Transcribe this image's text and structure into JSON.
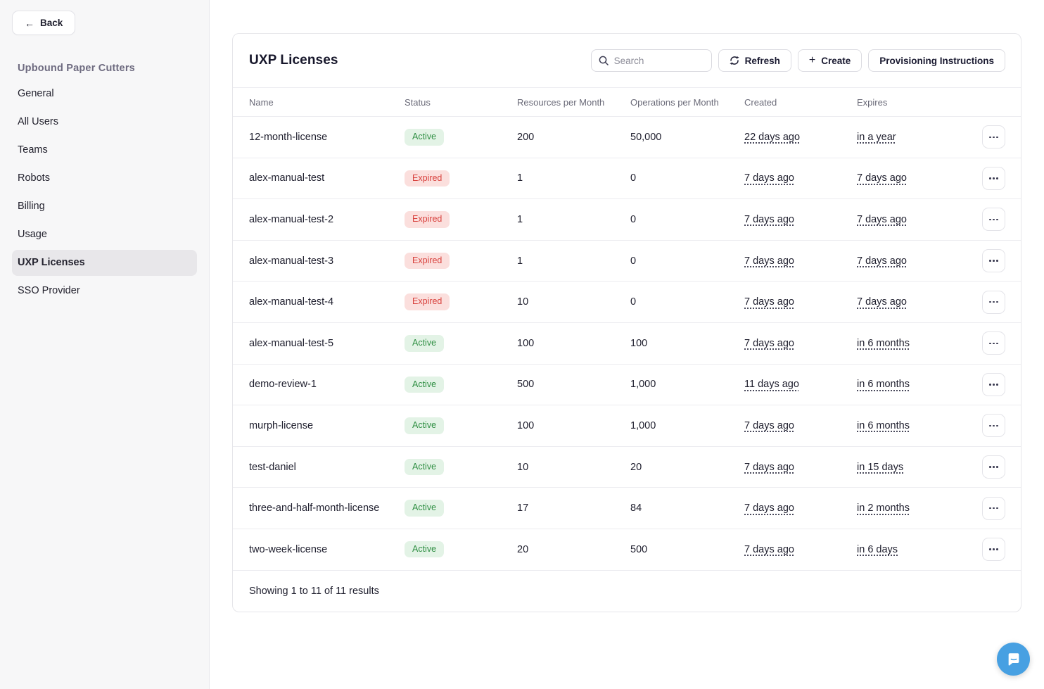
{
  "sidebar": {
    "back_label": "Back",
    "org_title": "Upbound Paper Cutters",
    "items": [
      {
        "label": "General",
        "active": false
      },
      {
        "label": "All Users",
        "active": false
      },
      {
        "label": "Teams",
        "active": false
      },
      {
        "label": "Robots",
        "active": false
      },
      {
        "label": "Billing",
        "active": false
      },
      {
        "label": "Usage",
        "active": false
      },
      {
        "label": "UXP Licenses",
        "active": true
      },
      {
        "label": "SSO Provider",
        "active": false
      }
    ]
  },
  "panel": {
    "title": "UXP Licenses",
    "search_placeholder": "Search",
    "refresh_label": "Refresh",
    "create_label": "Create",
    "provisioning_label": "Provisioning Instructions",
    "columns": [
      "Name",
      "Status",
      "Resources per Month",
      "Operations per Month",
      "Created",
      "Expires"
    ],
    "rows": [
      {
        "name": "12-month-license",
        "status": "Active",
        "resources": "200",
        "operations": "50,000",
        "created": "22 days ago",
        "expires": "in a year"
      },
      {
        "name": "alex-manual-test",
        "status": "Expired",
        "resources": "1",
        "operations": "0",
        "created": "7 days ago",
        "expires": "7 days ago"
      },
      {
        "name": "alex-manual-test-2",
        "status": "Expired",
        "resources": "1",
        "operations": "0",
        "created": "7 days ago",
        "expires": "7 days ago"
      },
      {
        "name": "alex-manual-test-3",
        "status": "Expired",
        "resources": "1",
        "operations": "0",
        "created": "7 days ago",
        "expires": "7 days ago"
      },
      {
        "name": "alex-manual-test-4",
        "status": "Expired",
        "resources": "10",
        "operations": "0",
        "created": "7 days ago",
        "expires": "7 days ago"
      },
      {
        "name": "alex-manual-test-5",
        "status": "Active",
        "resources": "100",
        "operations": "100",
        "created": "7 days ago",
        "expires": "in 6 months"
      },
      {
        "name": "demo-review-1",
        "status": "Active",
        "resources": "500",
        "operations": "1,000",
        "created": "11 days ago",
        "expires": "in 6 months"
      },
      {
        "name": "murph-license",
        "status": "Active",
        "resources": "100",
        "operations": "1,000",
        "created": "7 days ago",
        "expires": "in 6 months"
      },
      {
        "name": "test-daniel",
        "status": "Active",
        "resources": "10",
        "operations": "20",
        "created": "7 days ago",
        "expires": "in 15 days"
      },
      {
        "name": "three-and-half-month-license",
        "status": "Active",
        "resources": "17",
        "operations": "84",
        "created": "7 days ago",
        "expires": "in 2 months"
      },
      {
        "name": "two-week-license",
        "status": "Active",
        "resources": "20",
        "operations": "500",
        "created": "7 days ago",
        "expires": "in 6 days"
      }
    ],
    "footer_text": "Showing 1 to 11 of 11 results"
  },
  "colors": {
    "active_bg": "#e3f3e6",
    "active_text": "#2f8f43",
    "expired_bg": "#fbdfdd",
    "expired_text": "#d8403c",
    "chat_blue": "#47a0e2"
  }
}
